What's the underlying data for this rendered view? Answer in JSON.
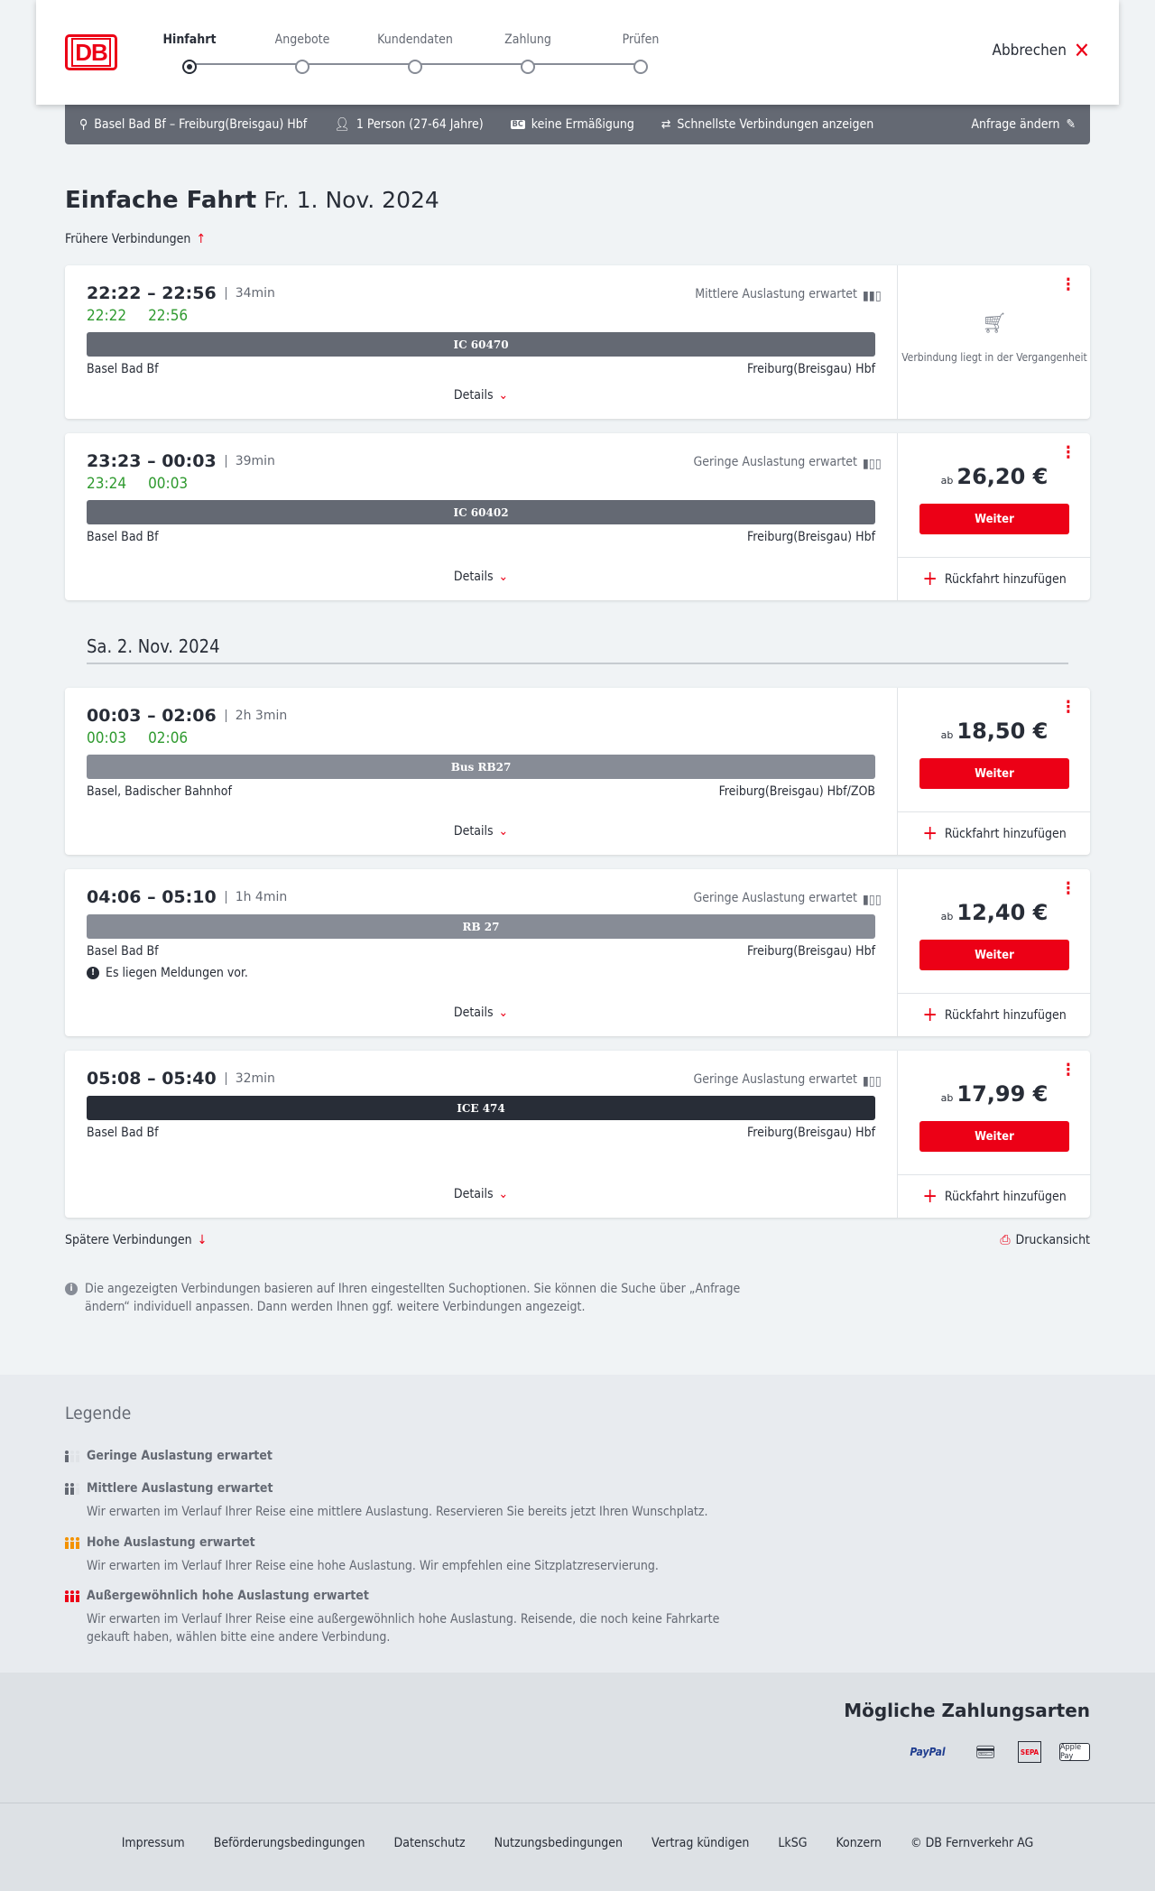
{
  "header": {
    "logo": "DB",
    "steps": [
      "Hinfahrt",
      "Angebote",
      "Kundendaten",
      "Zahlung",
      "Prüfen"
    ],
    "active_step": 0,
    "cancel": "Abbrechen"
  },
  "summary": {
    "route": "Basel Bad Bf – Freiburg(Breisgau) Hbf",
    "travellers": "1 Person (27-64 Jahre)",
    "discount": "keine Ermäßigung",
    "option": "Schnellste Verbindungen anzeigen",
    "change": "Anfrage ändern"
  },
  "title": "Einfache Fahrt",
  "date1": "Fr. 1. Nov. 2024",
  "earlier": "Frühere Verbindungen",
  "date2": "Sa. 2. Nov. 2024",
  "labels": {
    "details": "Details",
    "weiter": "Weiter",
    "return": "Rückfahrt hinzufügen",
    "ab": "ab",
    "past": "Verbindung liegt in der Vergangenheit"
  },
  "connections": [
    {
      "times": "22:22 – 22:56",
      "duration": "34min",
      "rt_dep": "22:22",
      "rt_arr": "22:56",
      "occupancy": "Mittlere Auslastung erwartet",
      "train": "IC 60470",
      "train_color": "#646973",
      "from": "Basel Bad Bf",
      "to": "Freiburg(Breisgau) Hbf",
      "past": true
    },
    {
      "times": "23:23 – 00:03",
      "duration": "39min",
      "rt_dep": "23:24",
      "rt_arr": "00:03",
      "occupancy": "Geringe Auslastung erwartet",
      "train": "IC 60402",
      "train_color": "#646973",
      "from": "Basel Bad Bf",
      "to": "Freiburg(Breisgau) Hbf",
      "price": "26,20 €"
    },
    {
      "times": "00:03 – 02:06",
      "duration": "2h 3min",
      "rt_dep": "00:03",
      "rt_arr": "02:06",
      "train": "Bus RB27",
      "train_color": "#878c96",
      "from": "Basel, Badischer Bahnhof",
      "to": "Freiburg(Breisgau) Hbf/ZOB",
      "price": "18,50 €"
    },
    {
      "times": "04:06 – 05:10",
      "duration": "1h 4min",
      "occupancy": "Geringe Auslastung erwartet",
      "train": "RB 27",
      "train_color": "#878c96",
      "from": "Basel Bad Bf",
      "to": "Freiburg(Breisgau) Hbf",
      "message": "Es liegen Meldungen vor.",
      "price": "12,40 €"
    },
    {
      "times": "05:08 – 05:40",
      "duration": "32min",
      "occupancy": "Geringe Auslastung erwartet",
      "train": "ICE 474",
      "train_color": "#282d37",
      "from": "Basel Bad Bf",
      "to": "Freiburg(Breisgau) Hbf",
      "price": "17,99 €"
    }
  ],
  "later": "Spätere Verbindungen",
  "print": "Druckansicht",
  "info": "Die angezeigten Verbindungen basieren auf Ihren eingestellten Suchoptionen. Sie können die Suche über „Anfrage ändern“ individuell anpassen. Dann werden Ihnen ggf. weitere Verbindungen angezeigt.",
  "legend": {
    "title": "Legende",
    "items": [
      {
        "title": "Geringe Auslastung erwartet",
        "text": ""
      },
      {
        "title": "Mittlere Auslastung erwartet",
        "text": "Wir erwarten im Verlauf Ihrer Reise eine mittlere Auslastung. Reservieren Sie bereits jetzt Ihren Wunschplatz."
      },
      {
        "title": "Hohe Auslastung erwartet",
        "text": "Wir erwarten im Verlauf Ihrer Reise eine hohe Auslastung. Wir empfehlen eine Sitzplatzreservierung."
      },
      {
        "title": "Außergewöhnlich hohe Auslastung erwartet",
        "text": "Wir erwarten im Verlauf Ihrer Reise eine außergewöhnlich hohe Auslastung. Reisende, die noch keine Fahrkarte gekauft haben, wählen bitte eine andere Verbindung."
      }
    ]
  },
  "payment": {
    "title": "Mögliche Zahlungsarten",
    "methods": [
      "PayPal",
      "Kreditkarte",
      "SEPA",
      "Apple Pay"
    ]
  },
  "footer": [
    "Impressum",
    "Beförderungsbedingungen",
    "Datenschutz",
    "Nutzungsbedingungen",
    "Vertrag kündigen",
    "LkSG",
    "Konzern",
    "© DB Fernverkehr AG"
  ],
  "colors": {
    "accent": "#ec0016",
    "realtime": "#2f9a2f",
    "occ_low": "#e0e3e7",
    "occ_dark": "#646973",
    "occ_high": "#f39200"
  }
}
